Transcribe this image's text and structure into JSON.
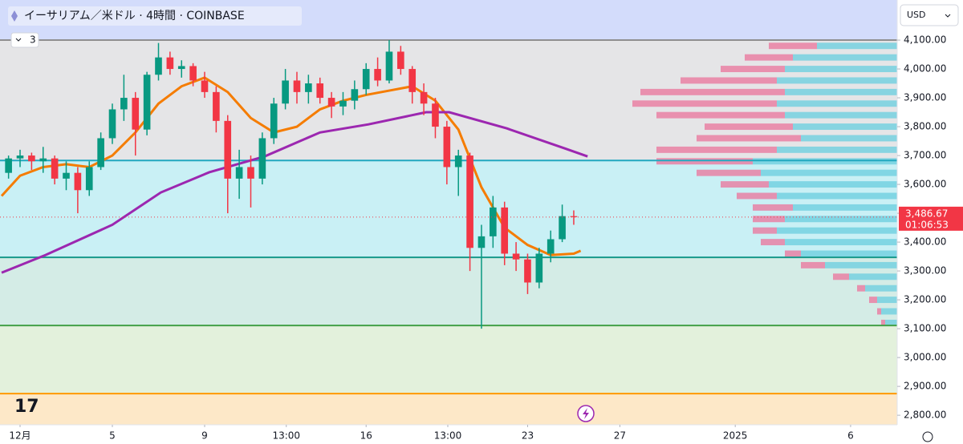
{
  "header": {
    "symbol_title": "イーサリアム／米ドル · 4時間 · COINBASE",
    "indicator_count": "3",
    "currency": "USD"
  },
  "chart_data": {
    "type": "candlestick",
    "x": [
      0.5,
      1,
      1.5,
      2,
      2.5,
      3,
      3.5,
      4,
      4.5,
      5,
      5.5,
      6,
      6.5,
      7,
      7.5,
      8,
      8.5,
      9,
      9.5,
      10,
      10.5,
      11,
      11.5,
      12,
      12.5,
      13,
      13.5,
      14,
      14.5,
      15,
      15.5,
      16,
      16.5,
      17,
      17.5,
      18,
      18.5,
      19,
      19.5,
      20,
      20.5,
      21,
      21.5,
      22,
      22.5,
      23,
      23.5,
      24,
      24.5,
      25
    ],
    "open": [
      3640,
      3690,
      3700,
      3680,
      3690,
      3620,
      3640,
      3580,
      3660,
      3760,
      3860,
      3900,
      3790,
      3980,
      4040,
      4000,
      4010,
      3960,
      3920,
      3820,
      3620,
      3660,
      3620,
      3760,
      3880,
      3960,
      3920,
      3950,
      3900,
      3870,
      3890,
      3930,
      4000,
      3960,
      4060,
      4000,
      3920,
      3880,
      3800,
      3660,
      3700,
      3380,
      3420,
      3520,
      3360,
      3340,
      3260,
      3360,
      3410,
      3490
    ],
    "high": [
      3700,
      3720,
      3710,
      3730,
      3700,
      3680,
      3660,
      3680,
      3780,
      3880,
      3980,
      3920,
      3990,
      4090,
      4060,
      4030,
      4020,
      3990,
      3940,
      3840,
      3720,
      3700,
      3780,
      3900,
      4000,
      3990,
      3980,
      3970,
      3920,
      3920,
      3960,
      4020,
      4040,
      4100,
      4080,
      4010,
      3950,
      3900,
      3820,
      3720,
      3710,
      3460,
      3560,
      3540,
      3400,
      3360,
      3380,
      3440,
      3530,
      3510
    ],
    "low": [
      3620,
      3660,
      3650,
      3640,
      3600,
      3580,
      3500,
      3560,
      3650,
      3740,
      3820,
      3700,
      3770,
      3960,
      3980,
      3970,
      3940,
      3900,
      3780,
      3500,
      3550,
      3520,
      3600,
      3740,
      3860,
      3880,
      3880,
      3880,
      3830,
      3840,
      3860,
      3910,
      3940,
      3950,
      3980,
      3880,
      3840,
      3760,
      3600,
      3560,
      3300,
      3100,
      3380,
      3320,
      3300,
      3220,
      3240,
      3330,
      3400,
      3460
    ],
    "close": [
      3690,
      3700,
      3680,
      3690,
      3620,
      3640,
      3580,
      3660,
      3760,
      3860,
      3900,
      3790,
      3980,
      4040,
      4000,
      4010,
      3960,
      3920,
      3820,
      3620,
      3660,
      3620,
      3760,
      3880,
      3960,
      3920,
      3950,
      3900,
      3870,
      3890,
      3930,
      4000,
      3960,
      4060,
      4000,
      3920,
      3880,
      3800,
      3660,
      3700,
      3380,
      3420,
      3520,
      3360,
      3340,
      3260,
      3360,
      3410,
      3490,
      3486.67
    ],
    "colors": {
      "up": "#089981",
      "down": "#f23645"
    },
    "xlim": [
      0.13,
      39.02
    ],
    "xticks": [
      {
        "value": 1,
        "label": "12月"
      },
      5,
      9,
      {
        "value": 12.54,
        "label": "13:00"
      },
      16,
      {
        "value": 19.54,
        "label": "13:00"
      },
      23,
      27,
      {
        "value": 32,
        "label": "2025"
      },
      {
        "value": 37,
        "label": "6"
      }
    ],
    "ylim": [
      2767,
      4239
    ],
    "yticks": [
      {
        "value": 2800,
        "label": "2,800.00"
      },
      {
        "value": 2900,
        "label": "2,900.00"
      },
      {
        "value": 3000,
        "label": "3,000.00"
      },
      {
        "value": 3100,
        "label": "3,100.00"
      },
      {
        "value": 3200,
        "label": "3,200.00"
      },
      {
        "value": 3300,
        "label": "3,300.00"
      },
      {
        "value": 3400,
        "label": "3,400.00"
      },
      {
        "value": 3500,
        "label": "3,500.00"
      },
      {
        "value": 3600,
        "label": "3,600.00"
      },
      {
        "value": 3700,
        "label": "3,700.00"
      },
      {
        "value": 3800,
        "label": "3,800.00"
      },
      {
        "value": 3900,
        "label": "3,900.00"
      },
      {
        "value": 4000,
        "label": "4,000.00"
      },
      {
        "value": 4100,
        "label": "4,100.00"
      }
    ],
    "overlays": [
      {
        "color": "#f57c00",
        "x": [
          0.2,
          1,
          2,
          3,
          4,
          5,
          6,
          7,
          8,
          9,
          10,
          11,
          12,
          13,
          14,
          15,
          16,
          17,
          18,
          19,
          20,
          21,
          22,
          23,
          24,
          25,
          25.3
        ],
        "values": [
          3560,
          3630,
          3660,
          3670,
          3660,
          3700,
          3780,
          3880,
          3940,
          3970,
          3920,
          3830,
          3780,
          3800,
          3860,
          3890,
          3910,
          3925,
          3940,
          3890,
          3790,
          3590,
          3450,
          3390,
          3355,
          3360,
          3370
        ]
      },
      {
        "color": "#9c27b0",
        "x": [
          0.2,
          2.1,
          5,
          7.1,
          9.2,
          11.6,
          14,
          16.1,
          18.6,
          19.6,
          22.1,
          24.6,
          25.6
        ],
        "values": [
          3294,
          3355,
          3460,
          3572,
          3642,
          3697,
          3780,
          3808,
          3850,
          3850,
          3794,
          3725,
          3697
        ]
      }
    ],
    "levels": [
      {
        "value": 4100,
        "color": "#8f8f8f"
      },
      {
        "value": 3683,
        "color": "#22a8c0"
      },
      {
        "value": 3347,
        "color": "#16998a"
      },
      {
        "value": 3111,
        "color": "#43a047"
      },
      {
        "value": 2875,
        "color": "#ff9800"
      }
    ],
    "zone_colors": [
      "#d3dcfb",
      "#e5e5e7",
      "#c9f0f5",
      "#d4ece6",
      "#e3f1dc",
      "#fde8c8"
    ],
    "volume_profile": {
      "prices": [
        4080,
        4040,
        4000,
        3960,
        3920,
        3880,
        3840,
        3800,
        3760,
        3720,
        3680,
        3640,
        3600,
        3560,
        3520,
        3480,
        3440,
        3400,
        3360,
        3320,
        3280,
        3240,
        3200,
        3160,
        3120
      ],
      "up": [
        100,
        130,
        140,
        150,
        140,
        150,
        140,
        130,
        120,
        150,
        180,
        170,
        160,
        150,
        130,
        140,
        150,
        140,
        120,
        90,
        60,
        40,
        25,
        20,
        15
      ],
      "down": [
        60,
        60,
        80,
        120,
        180,
        180,
        160,
        110,
        130,
        150,
        120,
        80,
        60,
        50,
        50,
        40,
        30,
        30,
        20,
        30,
        20,
        10,
        10,
        5,
        5
      ],
      "colors": [
        "#6fcfe0",
        "#ea7aa0"
      ]
    },
    "last_price": {
      "value": 3486.67,
      "label": "3,486.67",
      "countdown": "01:06:53",
      "color": "#f23645"
    }
  }
}
